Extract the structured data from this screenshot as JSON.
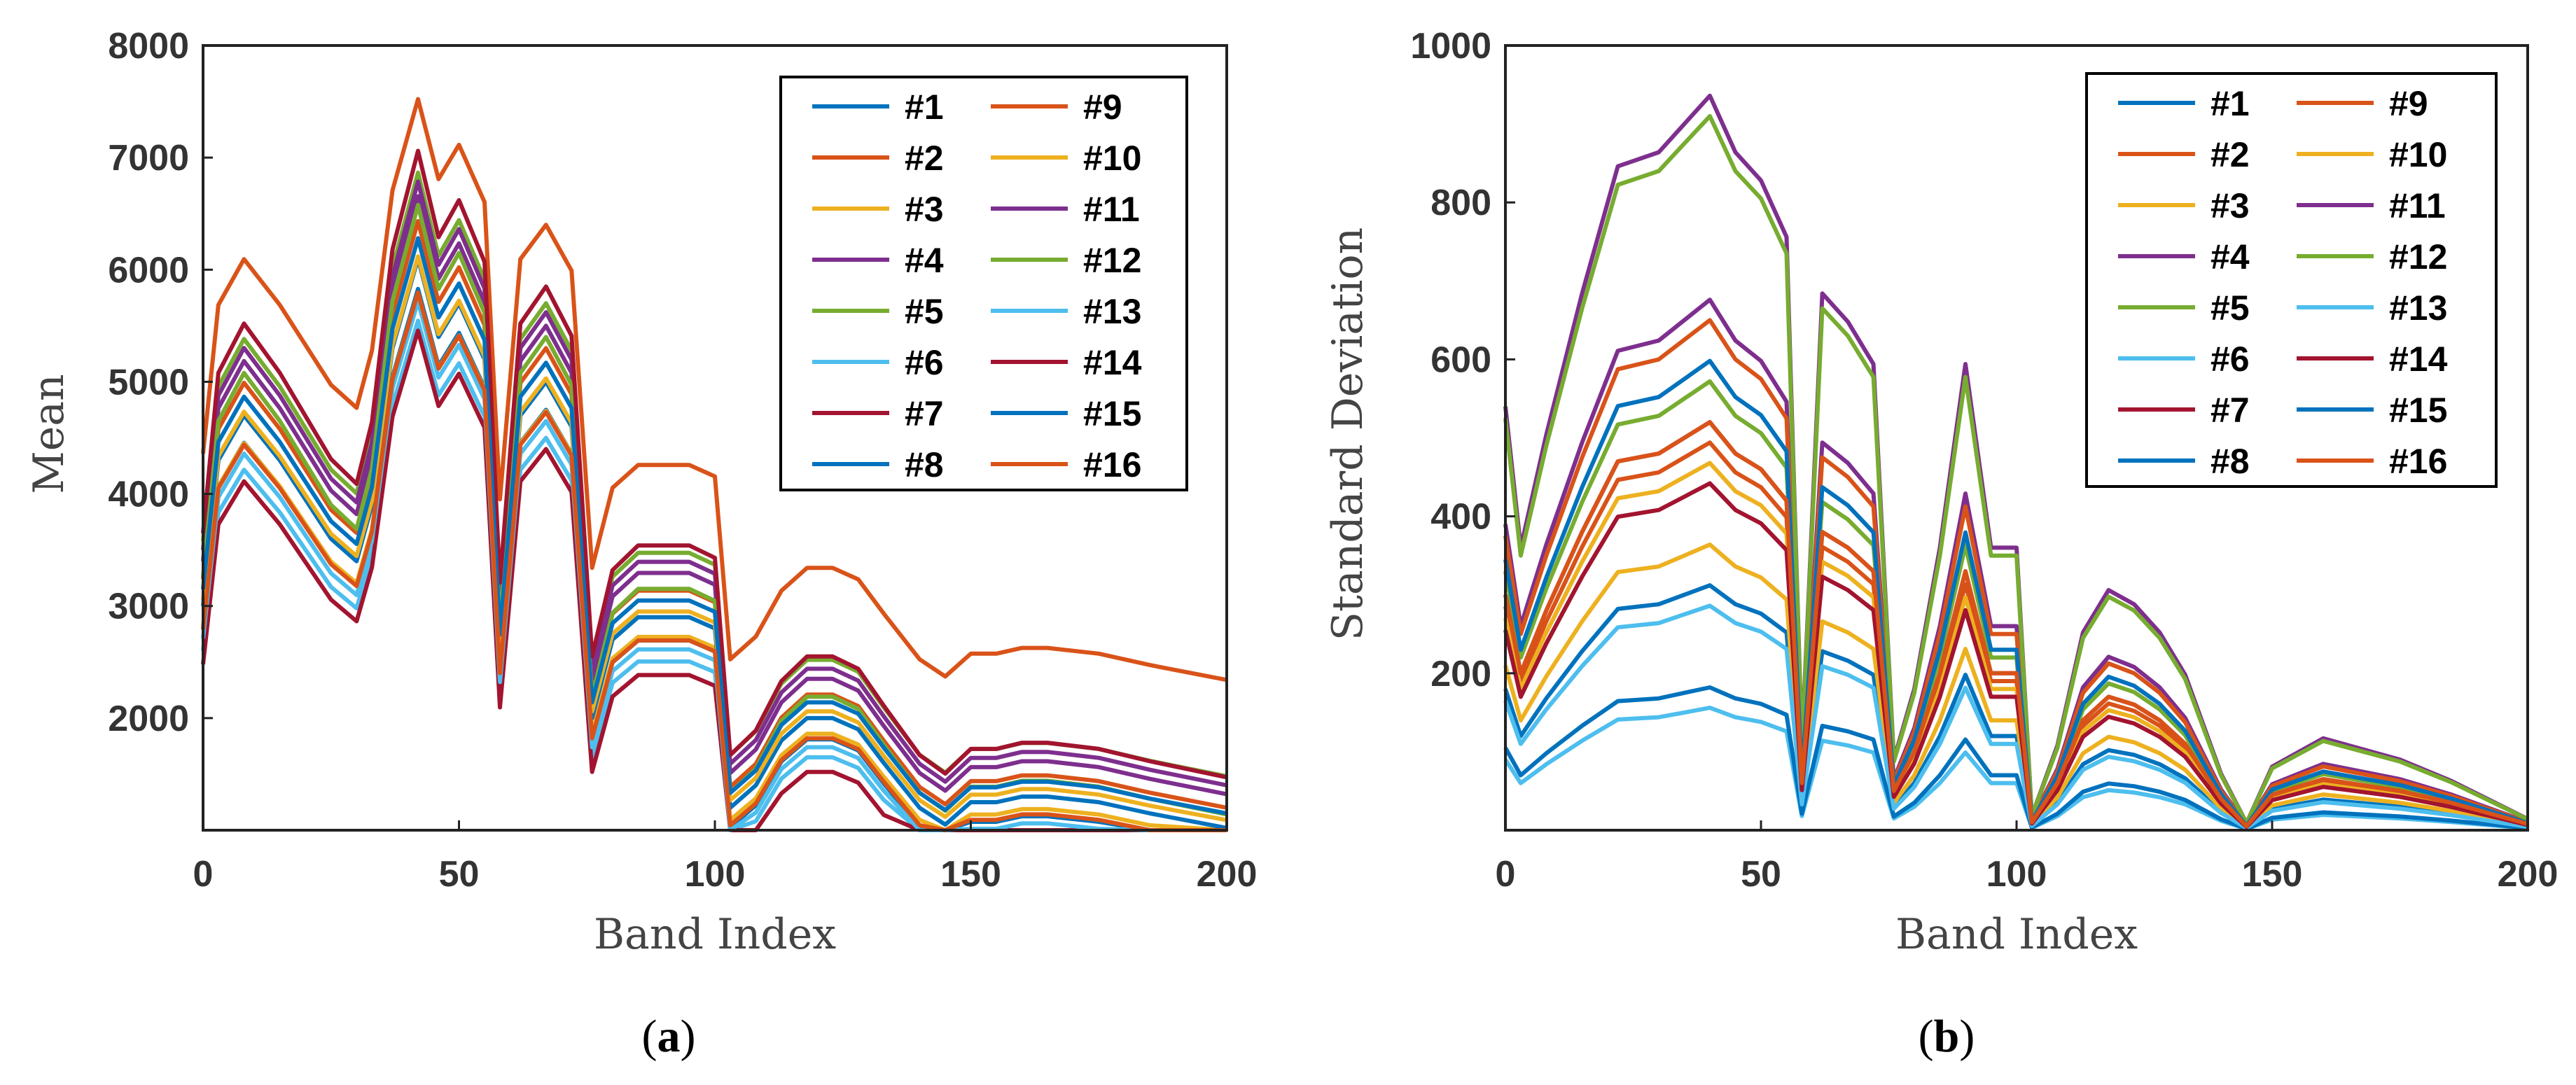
{
  "figure": {
    "palette": [
      "#0072BD",
      "#D95319",
      "#EDB120",
      "#7E2F8E",
      "#77AC30",
      "#4DBEEE",
      "#A2142F",
      "#0072BD",
      "#D95319",
      "#EDB120",
      "#7E2F8E",
      "#77AC30",
      "#4DBEEE",
      "#A2142F",
      "#0072BD",
      "#D95319"
    ],
    "captions": [
      {
        "open": "(",
        "letter": "a",
        "close": ")"
      },
      {
        "open": "(",
        "letter": "b",
        "close": ")"
      }
    ]
  },
  "chart_data": [
    {
      "type": "line",
      "title": "",
      "xlabel": "Band Index",
      "ylabel": "Mean",
      "xlim": [
        0,
        200
      ],
      "ylim": [
        1000,
        8000
      ],
      "xticks": [
        0,
        50,
        100,
        150,
        200
      ],
      "yticks": [
        2000,
        3000,
        4000,
        5000,
        6000,
        7000,
        8000
      ],
      "legend": {
        "position": "top-right",
        "columns": 2
      },
      "x": [
        0,
        3,
        8,
        15,
        25,
        30,
        33,
        37,
        42,
        46,
        50,
        55,
        58,
        62,
        67,
        72,
        76,
        80,
        85,
        90,
        95,
        100,
        103,
        108,
        113,
        118,
        123,
        128,
        133,
        140,
        145,
        150,
        155,
        160,
        165,
        175,
        185,
        200
      ],
      "base": [
        3000,
        4300,
        4700,
        4300,
        3600,
        3400,
        3900,
        5300,
        6100,
        5400,
        5700,
        5200,
        2600,
        4700,
        5000,
        4600,
        2000,
        2700,
        2900,
        2900,
        2900,
        2800,
        1200,
        1400,
        1800,
        2000,
        2000,
        1900,
        1600,
        1200,
        1050,
        1250,
        1250,
        1300,
        1300,
        1250,
        1150,
        1020
      ],
      "series": [
        {
          "name": "#1",
          "offset": -150,
          "scale": 0.98
        },
        {
          "name": "#2",
          "offset": 150,
          "scale": 1.03
        },
        {
          "name": "#3",
          "offset": -60,
          "scale": 0.96
        },
        {
          "name": "#4",
          "offset": 250,
          "scale": 1.05
        },
        {
          "name": "#5",
          "offset": 400,
          "scale": 1.06
        },
        {
          "name": "#6",
          "offset": -250,
          "scale": 0.95
        },
        {
          "name": "#7",
          "offset": -400,
          "scale": 0.96
        },
        {
          "name": "#8",
          "offset": 0,
          "scale": 1.0
        },
        {
          "name": "#9",
          "offset": 1300,
          "scale": 1.02
        },
        {
          "name": "#10",
          "offset": 80,
          "scale": 0.99
        },
        {
          "name": "#11",
          "offset": 320,
          "scale": 1.06
        },
        {
          "name": "#12",
          "offset": 50,
          "scale": 1.07
        },
        {
          "name": "#13",
          "offset": -200,
          "scale": 0.97
        },
        {
          "name": "#14",
          "offset": 350,
          "scale": 1.1
        },
        {
          "name": "#15",
          "offset": 120,
          "scale": 1.01
        },
        {
          "name": "#16",
          "offset": -120,
          "scale": 0.97
        }
      ]
    },
    {
      "type": "line",
      "title": "",
      "xlabel": "Band Index",
      "ylabel": "Standard Deviation",
      "xlim": [
        0,
        200
      ],
      "ylim": [
        0,
        1000
      ],
      "xticks": [
        0,
        50,
        100,
        150,
        200
      ],
      "yticks": [
        200,
        400,
        600,
        800,
        1000
      ],
      "legend": {
        "position": "top-right",
        "columns": 2
      },
      "x": [
        0,
        3,
        8,
        15,
        22,
        30,
        35,
        40,
        45,
        50,
        55,
        58,
        62,
        67,
        72,
        76,
        80,
        85,
        90,
        95,
        100,
        103,
        108,
        113,
        118,
        123,
        128,
        133,
        140,
        145,
        150,
        155,
        160,
        165,
        175,
        185,
        200
      ],
      "base": [
        300,
        200,
        280,
        380,
        470,
        480,
        500,
        520,
        480,
        460,
        420,
        60,
        380,
        360,
        330,
        50,
        100,
        200,
        330,
        200,
        200,
        10,
        60,
        140,
        170,
        160,
        140,
        110,
        40,
        5,
        45,
        55,
        65,
        60,
        50,
        35,
        8
      ],
      "series": [
        {
          "name": "#1",
          "offset": 0,
          "scale": 0.6
        },
        {
          "name": "#2",
          "offset": 0,
          "scale": 0.95
        },
        {
          "name": "#3",
          "offset": 0,
          "scale": 0.9
        },
        {
          "name": "#4",
          "offset": 0,
          "scale": 1.3
        },
        {
          "name": "#5",
          "offset": 0,
          "scale": 1.1
        },
        {
          "name": "#6",
          "offset": 0,
          "scale": 0.3
        },
        {
          "name": "#7",
          "offset": 0,
          "scale": 1.0
        },
        {
          "name": "#8",
          "offset": 0,
          "scale": 0.35
        },
        {
          "name": "#9",
          "offset": 0,
          "scale": 1.25
        },
        {
          "name": "#10",
          "offset": 0,
          "scale": 0.7
        },
        {
          "name": "#11",
          "offset": 0,
          "scale": 1.8
        },
        {
          "name": "#12",
          "offset": 0,
          "scale": 1.75
        },
        {
          "name": "#13",
          "offset": 0,
          "scale": 0.55
        },
        {
          "name": "#14",
          "offset": 0,
          "scale": 0.85
        },
        {
          "name": "#15",
          "offset": 0,
          "scale": 1.15
        },
        {
          "name": "#16",
          "offset": 0,
          "scale": 1.0
        }
      ]
    }
  ]
}
